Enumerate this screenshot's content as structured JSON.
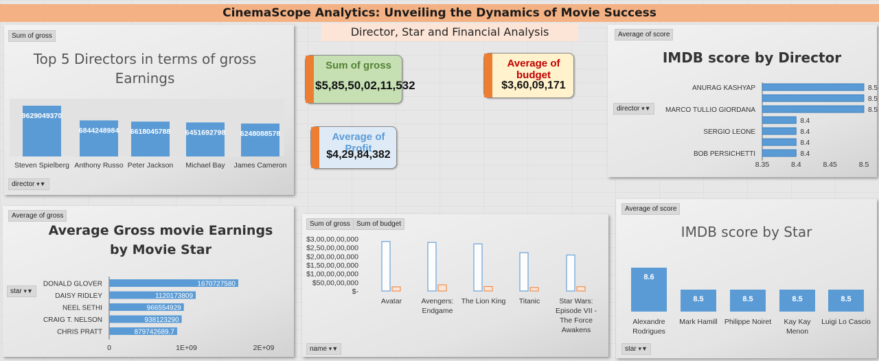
{
  "header": {
    "title": "CinemaScope Analytics: Unveiling the Dynamics of Movie Success",
    "subtitle": "Director, Star and Financial Analysis"
  },
  "kpis": {
    "gross": {
      "label": "Sum of gross",
      "value": "$5,85,50,02,11,532",
      "label_color": "#548235",
      "bg": "#c6e0b4"
    },
    "budget": {
      "label": "Average of budget",
      "value": "$3,60,09,171",
      "label_color": "#c00000",
      "bg": "#fff2cc"
    },
    "profit": {
      "label": "Average of Profit",
      "value": "$4,29,84,382",
      "label_color": "#5b9bd5",
      "bg": "#deebf7"
    }
  },
  "panels": {
    "directors_gross": {
      "chip": "Sum of gross",
      "filter": "director"
    },
    "imdb_director": {
      "chip": "Average of score",
      "filter": "director"
    },
    "star_gross": {
      "chip": "Average of gross",
      "filter": "star"
    },
    "gross_budget": {
      "chip1": "Sum of gross",
      "chip2": "Sum of budget",
      "filter": "name"
    },
    "imdb_star": {
      "chip": "Average of score",
      "filter": "star"
    }
  },
  "colors": {
    "bar": "#5b9bd5",
    "orange": "#ed7d31"
  },
  "chart_data": [
    {
      "id": "top_directors",
      "type": "bar",
      "title": "Top 5 Directors in terms of gross Earnings",
      "categories": [
        "Steven Spielberg",
        "Anthony Russo",
        "Peter Jackson",
        "Michael Bay",
        "James Cameron"
      ],
      "values": [
        9629049370,
        6844248984,
        6618045788,
        6451692798,
        6248088578
      ],
      "labels": [
        "9629049370",
        "6844248984",
        "6618045788",
        "6451692798",
        "6248088578"
      ]
    },
    {
      "id": "imdb_director",
      "type": "bar",
      "orientation": "horizontal",
      "title": "IMDB score by Director",
      "categories": [
        "ANURAG KASHYAP",
        "",
        "MARCO TULLIO GIORDANA",
        "",
        "SERGIO LEONE",
        "",
        "BOB PERSICHETTI"
      ],
      "values": [
        8.5,
        8.5,
        8.5,
        8.4,
        8.4,
        8.4,
        8.4
      ],
      "labels": [
        "8.5",
        "8.5",
        "8.5",
        "8.4",
        "8.4",
        "8.4",
        "8.4"
      ],
      "xlim": [
        8.35,
        8.5
      ],
      "xticks": [
        "8.35",
        "8.4",
        "8.45",
        "8.5"
      ]
    },
    {
      "id": "star_gross",
      "type": "bar",
      "orientation": "horizontal",
      "title": "Average Gross movie Earnings by Movie Star",
      "categories": [
        "DONALD GLOVER",
        "DAISY RIDLEY",
        "NEEL SETHI",
        "CRAIG T. NELSON",
        "CHRIS PRATT"
      ],
      "values": [
        1670727580,
        1120173809,
        966554929,
        938123290,
        879742689.7
      ],
      "labels": [
        "1670727580",
        "1120173809",
        "966554929",
        "938123290",
        "879742689.7"
      ],
      "xlim": [
        0,
        2000000000
      ],
      "xticks": [
        "0",
        "1E+09",
        "2E+09"
      ]
    },
    {
      "id": "gross_budget",
      "type": "bar",
      "title": "",
      "categories": [
        "Avatar",
        "Avengers: Endgame",
        "The Lion King",
        "Titanic",
        "Star Wars: Episode VII - The Force Awakens"
      ],
      "category_lines": [
        [
          "Avatar"
        ],
        [
          "Avengers:",
          "Endgame"
        ],
        [
          "The Lion King"
        ],
        [
          "Titanic"
        ],
        [
          "Star Wars:",
          "Episode VII -",
          "The Force",
          "Awakens"
        ]
      ],
      "series": [
        {
          "name": "Sum of gross",
          "values": [
            2847246203,
            2797501328,
            2708000000,
            2201647264,
            2069521700
          ]
        },
        {
          "name": "Sum of budget",
          "values": [
            237000000,
            356000000,
            260000000,
            200000000,
            245000000
          ]
        }
      ],
      "ylim": [
        0,
        3000000000
      ],
      "yticks": [
        "$-",
        "$50,00,00,000",
        "$1,00,00,00,000",
        "$1,50,00,00,000",
        "$2,00,00,00,000",
        "$2,50,00,00,000",
        "$3,00,00,00,000"
      ]
    },
    {
      "id": "imdb_star",
      "type": "bar",
      "title": "IMDB score by Star",
      "categories": [
        "Alexandre Rodrigues",
        "Mark Hamill",
        "Philippe Noiret",
        "Kay Kay Menon",
        "Luigi Lo Cascio"
      ],
      "category_lines": [
        [
          "Alexandre",
          "Rodrigues"
        ],
        [
          "Mark Hamill"
        ],
        [
          "Philippe Noiret"
        ],
        [
          "Kay Kay",
          "Menon"
        ],
        [
          "Luigi Lo Cascio"
        ]
      ],
      "values": [
        8.6,
        8.5,
        8.5,
        8.5,
        8.5
      ],
      "labels": [
        "8.6",
        "8.5",
        "8.5",
        "8.5",
        "8.5"
      ]
    }
  ]
}
